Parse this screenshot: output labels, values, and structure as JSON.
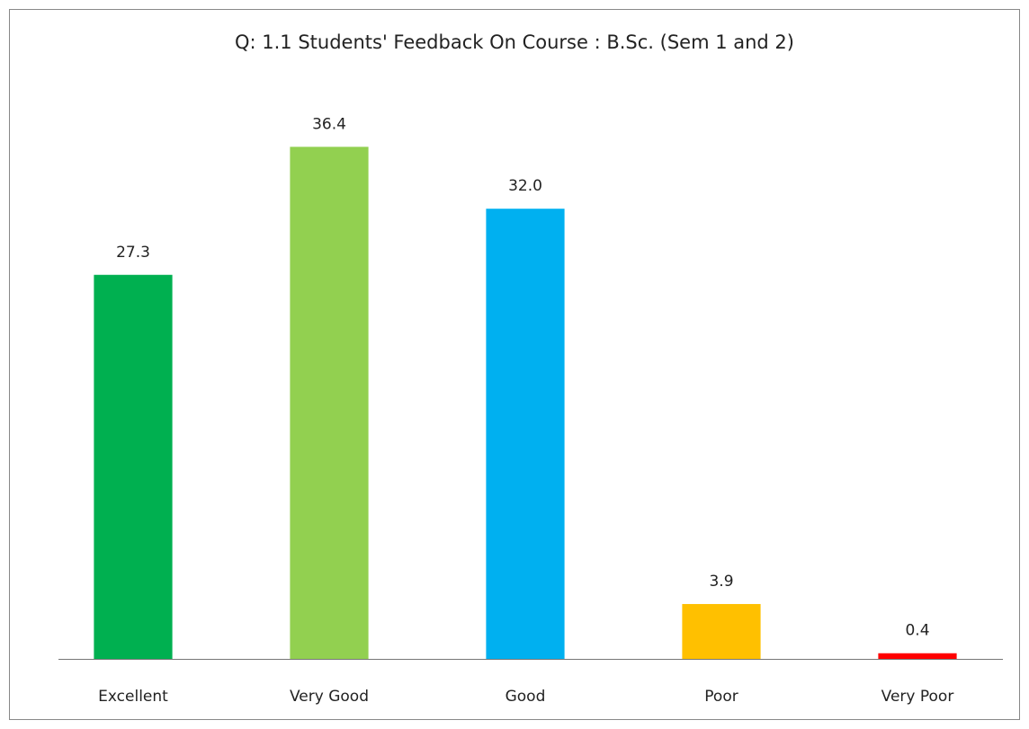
{
  "chart_data": {
    "type": "bar",
    "title": "Q: 1.1 Students' Feedback On Course : B.Sc. (Sem 1 and 2)",
    "categories": [
      "Excellent",
      "Very Good",
      "Good",
      "Poor",
      "Very Poor"
    ],
    "values": [
      27.3,
      36.4,
      32.0,
      3.9,
      0.4
    ],
    "value_labels": [
      "27.3",
      "36.4",
      "32.0",
      "3.9",
      "0.4"
    ],
    "colors": [
      "#00b050",
      "#92d050",
      "#00b0f0",
      "#ffc000",
      "#ff0000"
    ],
    "ylim": [
      0,
      40
    ]
  }
}
